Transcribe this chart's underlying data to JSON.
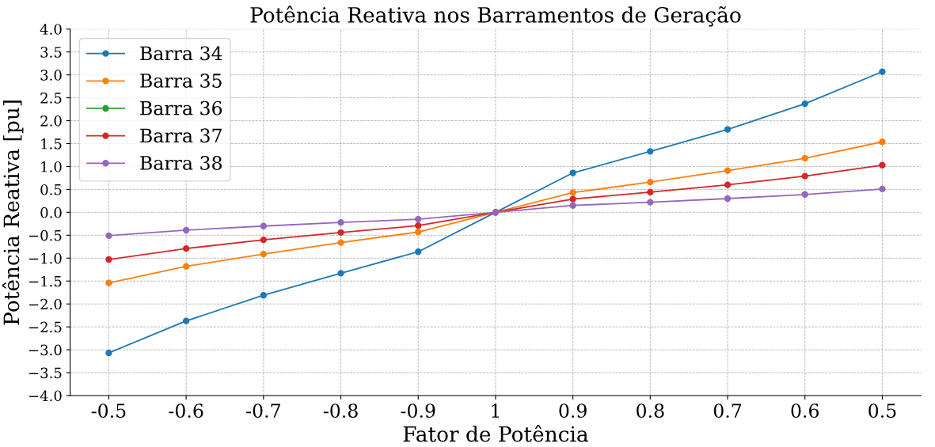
{
  "chart_data": {
    "type": "line",
    "title": "Potência Reativa nos Barramentos de Geração",
    "xlabel": "Fator de Potência",
    "ylabel": "Potência Reativa [pu]",
    "categories": [
      "-0.5",
      "-0.6",
      "-0.7",
      "-0.8",
      "-0.9",
      "1",
      "0.9",
      "0.8",
      "0.7",
      "0.6",
      "0.5"
    ],
    "series": [
      {
        "name": "Barra 34",
        "color": "#1f77b4",
        "values": [
          -3.07,
          -2.37,
          -1.81,
          -1.33,
          -0.86,
          0,
          0.86,
          1.33,
          1.81,
          2.37,
          3.07
        ]
      },
      {
        "name": "Barra 35",
        "color": "#ff7f0e",
        "values": [
          -1.54,
          -1.18,
          -0.91,
          -0.66,
          -0.43,
          0,
          0.43,
          0.66,
          0.91,
          1.18,
          1.54
        ]
      },
      {
        "name": "Barra 36",
        "color": "#2ca02c",
        "values": [
          null,
          null,
          null,
          null,
          null,
          null,
          null,
          null,
          null,
          null,
          null
        ]
      },
      {
        "name": "Barra 37",
        "color": "#d62728",
        "values": [
          -1.03,
          -0.79,
          -0.6,
          -0.44,
          -0.29,
          0,
          0.29,
          0.44,
          0.6,
          0.79,
          1.03
        ]
      },
      {
        "name": "Barra 38",
        "color": "#9467bd",
        "values": [
          -0.51,
          -0.39,
          -0.3,
          -0.22,
          -0.15,
          0,
          0.15,
          0.22,
          0.3,
          0.39,
          0.51
        ]
      }
    ],
    "ylim": [
      -4,
      4
    ],
    "yticks": [
      {
        "value": -4,
        "label": "−4.0"
      },
      {
        "value": -3.5,
        "label": "−3.5"
      },
      {
        "value": -3,
        "label": "−3.0"
      },
      {
        "value": -2.5,
        "label": "−2.5"
      },
      {
        "value": -2,
        "label": "−2.0"
      },
      {
        "value": -1.5,
        "label": "−1.5"
      },
      {
        "value": -1,
        "label": "−1.0"
      },
      {
        "value": -0.5,
        "label": "−0.5"
      },
      {
        "value": 0,
        "label": "0.0"
      },
      {
        "value": 0.5,
        "label": "0.5"
      },
      {
        "value": 1,
        "label": "1.0"
      },
      {
        "value": 1.5,
        "label": "1.5"
      },
      {
        "value": 2,
        "label": "2.0"
      },
      {
        "value": 2.5,
        "label": "2.5"
      },
      {
        "value": 3,
        "label": "3.0"
      },
      {
        "value": 3.5,
        "label": "3.5"
      },
      {
        "value": 4,
        "label": "4.0"
      }
    ],
    "grid": true,
    "legend": "top left",
    "marker": "circle",
    "line_style": "solid"
  }
}
